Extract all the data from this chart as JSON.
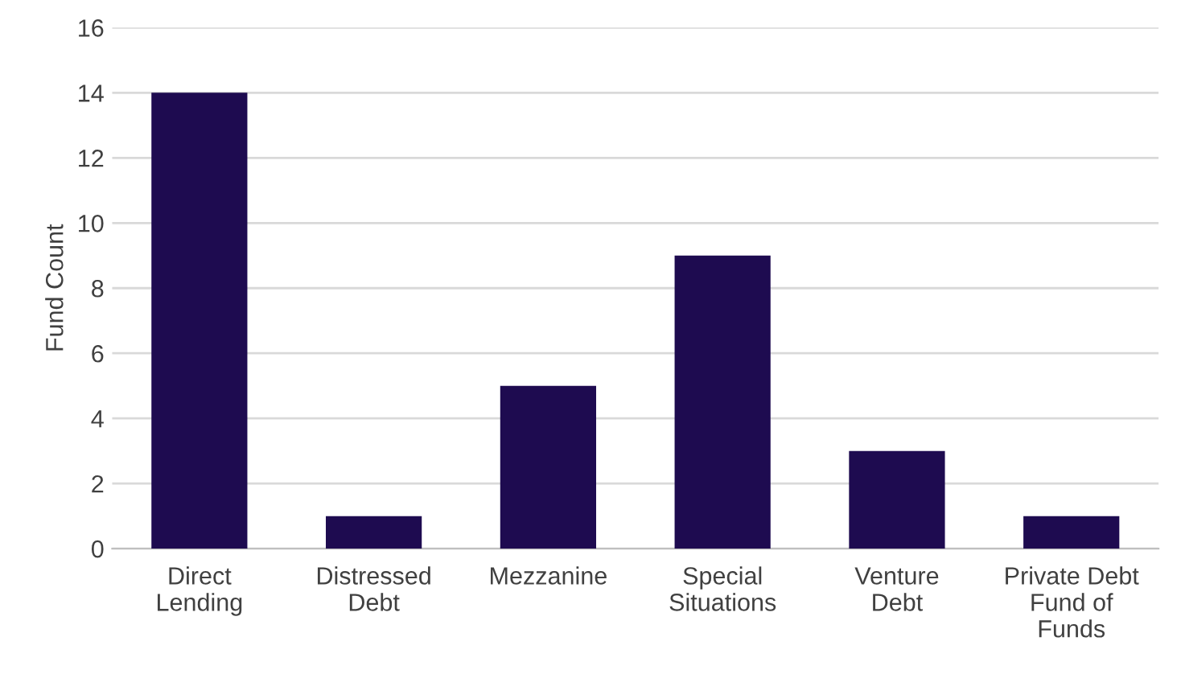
{
  "chart_data": {
    "type": "bar",
    "ylabel": "Fund Count",
    "categories": [
      "Direct\nLending",
      "Distressed\nDebt",
      "Mezzanine",
      "Special\nSituations",
      "Venture\nDebt",
      "Private Debt\nFund of\nFunds"
    ],
    "values": [
      14,
      1,
      5,
      9,
      3,
      1
    ],
    "color": "#1e0b50",
    "ylim": [
      0,
      16
    ],
    "yticks": [
      0,
      2,
      4,
      6,
      8,
      10,
      12,
      14,
      16
    ],
    "grid": "y",
    "legend": false
  }
}
